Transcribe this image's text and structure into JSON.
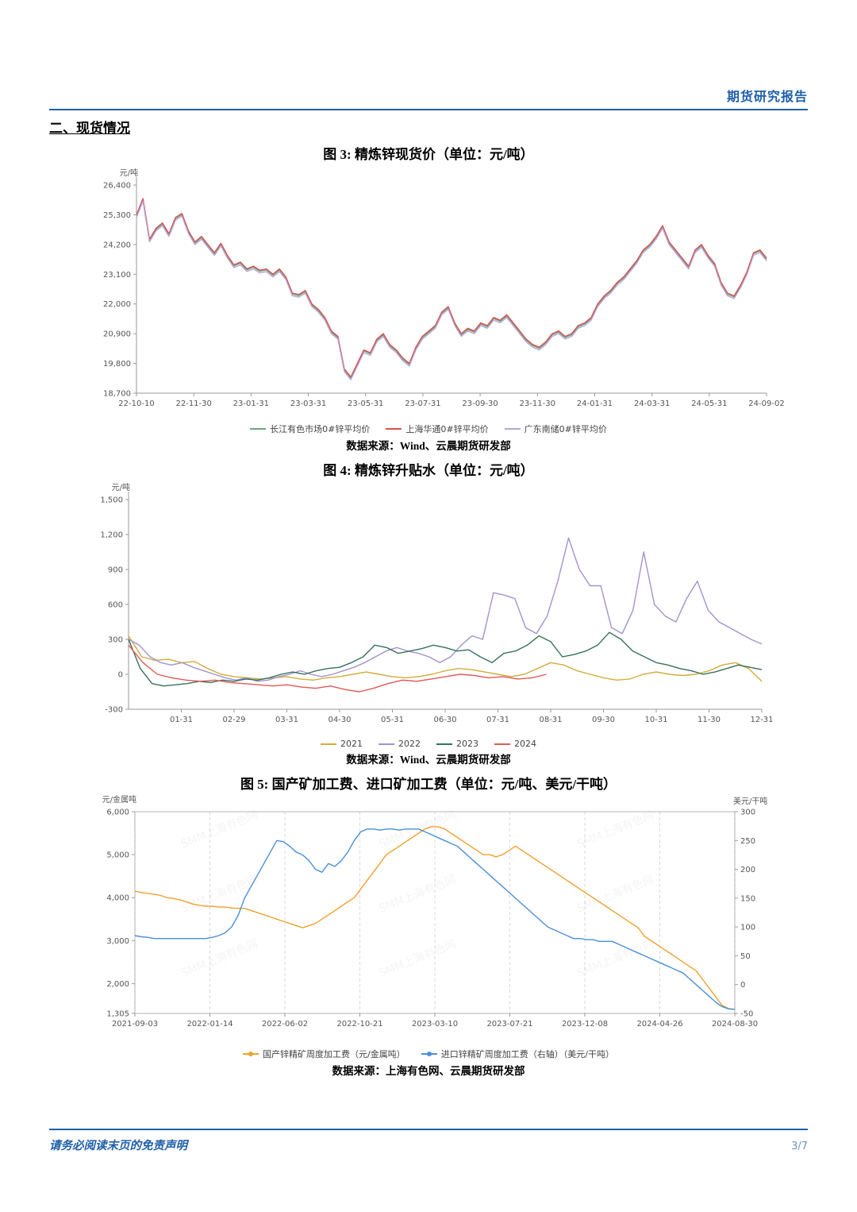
{
  "page": {
    "header_right": "期货研究报告",
    "section_title": "二、现货情况",
    "footer_left": "请务必阅读末页的免责声明",
    "footer_right": "3/7"
  },
  "chart_data": [
    {
      "id": "chart3",
      "type": "line",
      "title": "图 3: 精炼锌现货价（单位：元/吨）",
      "y_unit": "元/吨",
      "source": "数据来源：Wind、云晨期货研发部",
      "y_min": 18700,
      "y_max": 26400,
      "y_ticks": [
        26400,
        25300,
        24200,
        23100,
        22000,
        20900,
        19800,
        18700
      ],
      "x_labels": [
        "22-10-10",
        "22-11-30",
        "23-01-31",
        "23-03-31",
        "23-05-31",
        "23-07-31",
        "23-09-30",
        "23-11-30",
        "24-01-31",
        "24-03-31",
        "24-05-31",
        "24-09-02"
      ],
      "x_label_mode": "spread",
      "margins": {
        "l": 92,
        "t": 28,
        "r": 34,
        "b": 32
      },
      "base_values": [
        25300,
        25900,
        24400,
        24800,
        25000,
        24600,
        25200,
        25350,
        24700,
        24300,
        24500,
        24200,
        23900,
        24250,
        23800,
        23450,
        23550,
        23300,
        23400,
        23250,
        23300,
        23100,
        23300,
        23000,
        22400,
        22350,
        22500,
        22000,
        21800,
        21500,
        21000,
        20800,
        19600,
        19300,
        19800,
        20300,
        20200,
        20700,
        20900,
        20500,
        20300,
        20000,
        19800,
        20400,
        20800,
        21000,
        21200,
        21700,
        21900,
        21300,
        20900,
        21100,
        21000,
        21300,
        21200,
        21500,
        21400,
        21600,
        21300,
        21000,
        20700,
        20500,
        20400,
        20600,
        20900,
        21000,
        20800,
        20900,
        21200,
        21300,
        21500,
        22000,
        22300,
        22500,
        22800,
        23000,
        23300,
        23600,
        24000,
        24200,
        24500,
        24900,
        24300,
        24000,
        23700,
        23400,
        24000,
        24200,
        23800,
        23500,
        22800,
        22400,
        22300,
        22700,
        23200,
        23900,
        24000,
        23700
      ],
      "series": [
        {
          "name": "长江有色市场0#锌平均价",
          "color": "#6ba583",
          "offset": -40
        },
        {
          "name": "上海华通0#锌平均价",
          "color": "#d9534f",
          "offset": 0
        },
        {
          "name": "广东南储0#锌平均价",
          "color": "#b5a6d8",
          "offset": -100
        }
      ]
    },
    {
      "id": "chart4",
      "type": "line",
      "title": "图 4: 精炼锌升贴水（单位：元/吨）",
      "y_unit": "元/吨",
      "source": "数据来源：Wind、云晨期货研发部",
      "y_min": -300,
      "y_max": 1500,
      "y_ticks": [
        1500,
        1200,
        900,
        600,
        300,
        0,
        -300
      ],
      "x_labels": [
        "01-31",
        "02-29",
        "03-31",
        "04-30",
        "05-31",
        "06-30",
        "07-31",
        "08-31",
        "09-30",
        "10-31",
        "11-30",
        "12-31"
      ],
      "x_label_mode": "end",
      "margins": {
        "l": 82,
        "t": 26,
        "r": 40,
        "b": 32
      },
      "series": [
        {
          "name": "2021",
          "color": "#d4ac3a",
          "values": [
            330,
            150,
            120,
            130,
            100,
            110,
            50,
            0,
            -20,
            -30,
            -40,
            -30,
            -20,
            -40,
            -50,
            -30,
            -20,
            0,
            20,
            0,
            -20,
            -30,
            -20,
            0,
            30,
            50,
            40,
            20,
            0,
            -20,
            0,
            50,
            100,
            80,
            30,
            0,
            -30,
            -50,
            -40,
            0,
            20,
            0,
            -10,
            0,
            30,
            80,
            100,
            50,
            -60
          ]
        },
        {
          "name": "2022",
          "color": "#a392cf",
          "values": [
            300,
            250,
            150,
            100,
            80,
            100,
            60,
            30,
            0,
            -30,
            -50,
            -30,
            -60,
            -50,
            -20,
            0,
            30,
            0,
            -20,
            0,
            30,
            60,
            100,
            150,
            200,
            230,
            200,
            180,
            150,
            100,
            150,
            250,
            330,
            300,
            700,
            680,
            650,
            400,
            350,
            500,
            800,
            1170,
            900,
            760,
            760,
            400,
            350,
            550,
            1050,
            600,
            500,
            450,
            650,
            800,
            550,
            450,
            400,
            350,
            300,
            260
          ]
        },
        {
          "name": "2023",
          "color": "#37715a",
          "values": [
            300,
            50,
            -80,
            -100,
            -90,
            -80,
            -60,
            -70,
            -50,
            -60,
            -40,
            -50,
            -30,
            0,
            20,
            0,
            30,
            50,
            60,
            100,
            150,
            250,
            230,
            180,
            200,
            220,
            250,
            230,
            200,
            210,
            150,
            100,
            180,
            200,
            250,
            330,
            280,
            150,
            170,
            200,
            250,
            360,
            300,
            200,
            150,
            100,
            80,
            50,
            30,
            0,
            20,
            50,
            80,
            60,
            40
          ]
        },
        {
          "name": "2024",
          "color": "#e05a56",
          "span": 0.66,
          "values": [
            250,
            100,
            0,
            -30,
            -50,
            -60,
            -50,
            -70,
            -80,
            -90,
            -100,
            -90,
            -110,
            -120,
            -100,
            -130,
            -150,
            -120,
            -80,
            -50,
            -60,
            -40,
            -20,
            0,
            -10,
            -30,
            -20,
            -40,
            -30,
            0
          ]
        }
      ]
    },
    {
      "id": "chart5",
      "type": "line",
      "title": "图 5: 国产矿加工费、进口矿加工费（单位：元/吨、美元/干吨）",
      "y_unit": "元/金属吨",
      "y2_unit": "美元/干吨",
      "source": "数据来源：上海有色网、云晨期货研发部",
      "watermark": "SMM上海有色网",
      "legend_marker": "dot",
      "box": true,
      "grid_x": true,
      "y_min": 1305,
      "y_max": 6000,
      "y_ticks": [
        6000,
        5000,
        4000,
        3000,
        2000,
        1305
      ],
      "y2_min": -50,
      "y2_max": 300,
      "y2_ticks": [
        300,
        250,
        200,
        150,
        100,
        50,
        0,
        -50
      ],
      "x_labels": [
        "2021-09-03",
        "2022-01-14",
        "2022-06-02",
        "2022-10-21",
        "2023-03-10",
        "2023-07-21",
        "2023-12-08",
        "2024-04-26",
        "2024-08-30"
      ],
      "x_label_mode": "spread",
      "margins": {
        "l": 90,
        "t": 24,
        "r": 74,
        "b": 38
      },
      "series": [
        {
          "name": "国产锌精矿周度加工费（元/金属吨）",
          "color": "#f0a02e",
          "axis": "left",
          "values": [
            4150,
            4120,
            4100,
            4080,
            4050,
            4000,
            3980,
            3950,
            3900,
            3850,
            3820,
            3800,
            3800,
            3780,
            3780,
            3760,
            3750,
            3750,
            3700,
            3650,
            3600,
            3550,
            3500,
            3450,
            3400,
            3350,
            3300,
            3350,
            3400,
            3500,
            3600,
            3700,
            3800,
            3900,
            4000,
            4200,
            4400,
            4600,
            4800,
            5000,
            5100,
            5200,
            5300,
            5400,
            5500,
            5600,
            5650,
            5650,
            5600,
            5500,
            5400,
            5300,
            5200,
            5100,
            5000,
            5000,
            4950,
            5000,
            5100,
            5200,
            5100,
            5000,
            4900,
            4800,
            4700,
            4600,
            4500,
            4400,
            4300,
            4200,
            4100,
            4000,
            3900,
            3800,
            3700,
            3600,
            3500,
            3400,
            3300,
            3100,
            3000,
            2900,
            2800,
            2700,
            2600,
            2500,
            2400,
            2300,
            2100,
            1900,
            1700,
            1500,
            1420,
            1400
          ]
        },
        {
          "name": "进口锌精矿周度加工费（右轴）（美元/干吨）",
          "color": "#4a90d9",
          "axis": "right",
          "values": [
            85,
            83,
            82,
            80,
            80,
            80,
            80,
            80,
            80,
            80,
            80,
            80,
            82,
            85,
            90,
            100,
            120,
            150,
            170,
            190,
            210,
            230,
            250,
            248,
            240,
            230,
            225,
            215,
            200,
            195,
            210,
            205,
            215,
            230,
            250,
            265,
            270,
            270,
            268,
            270,
            270,
            268,
            270,
            270,
            270,
            265,
            260,
            255,
            250,
            245,
            240,
            230,
            220,
            210,
            200,
            190,
            180,
            170,
            160,
            150,
            140,
            130,
            120,
            110,
            100,
            95,
            90,
            85,
            80,
            80,
            78,
            78,
            75,
            75,
            75,
            70,
            65,
            60,
            55,
            50,
            45,
            40,
            35,
            30,
            25,
            20,
            10,
            0,
            -10,
            -20,
            -30,
            -38,
            -42,
            -43
          ]
        }
      ]
    }
  ]
}
